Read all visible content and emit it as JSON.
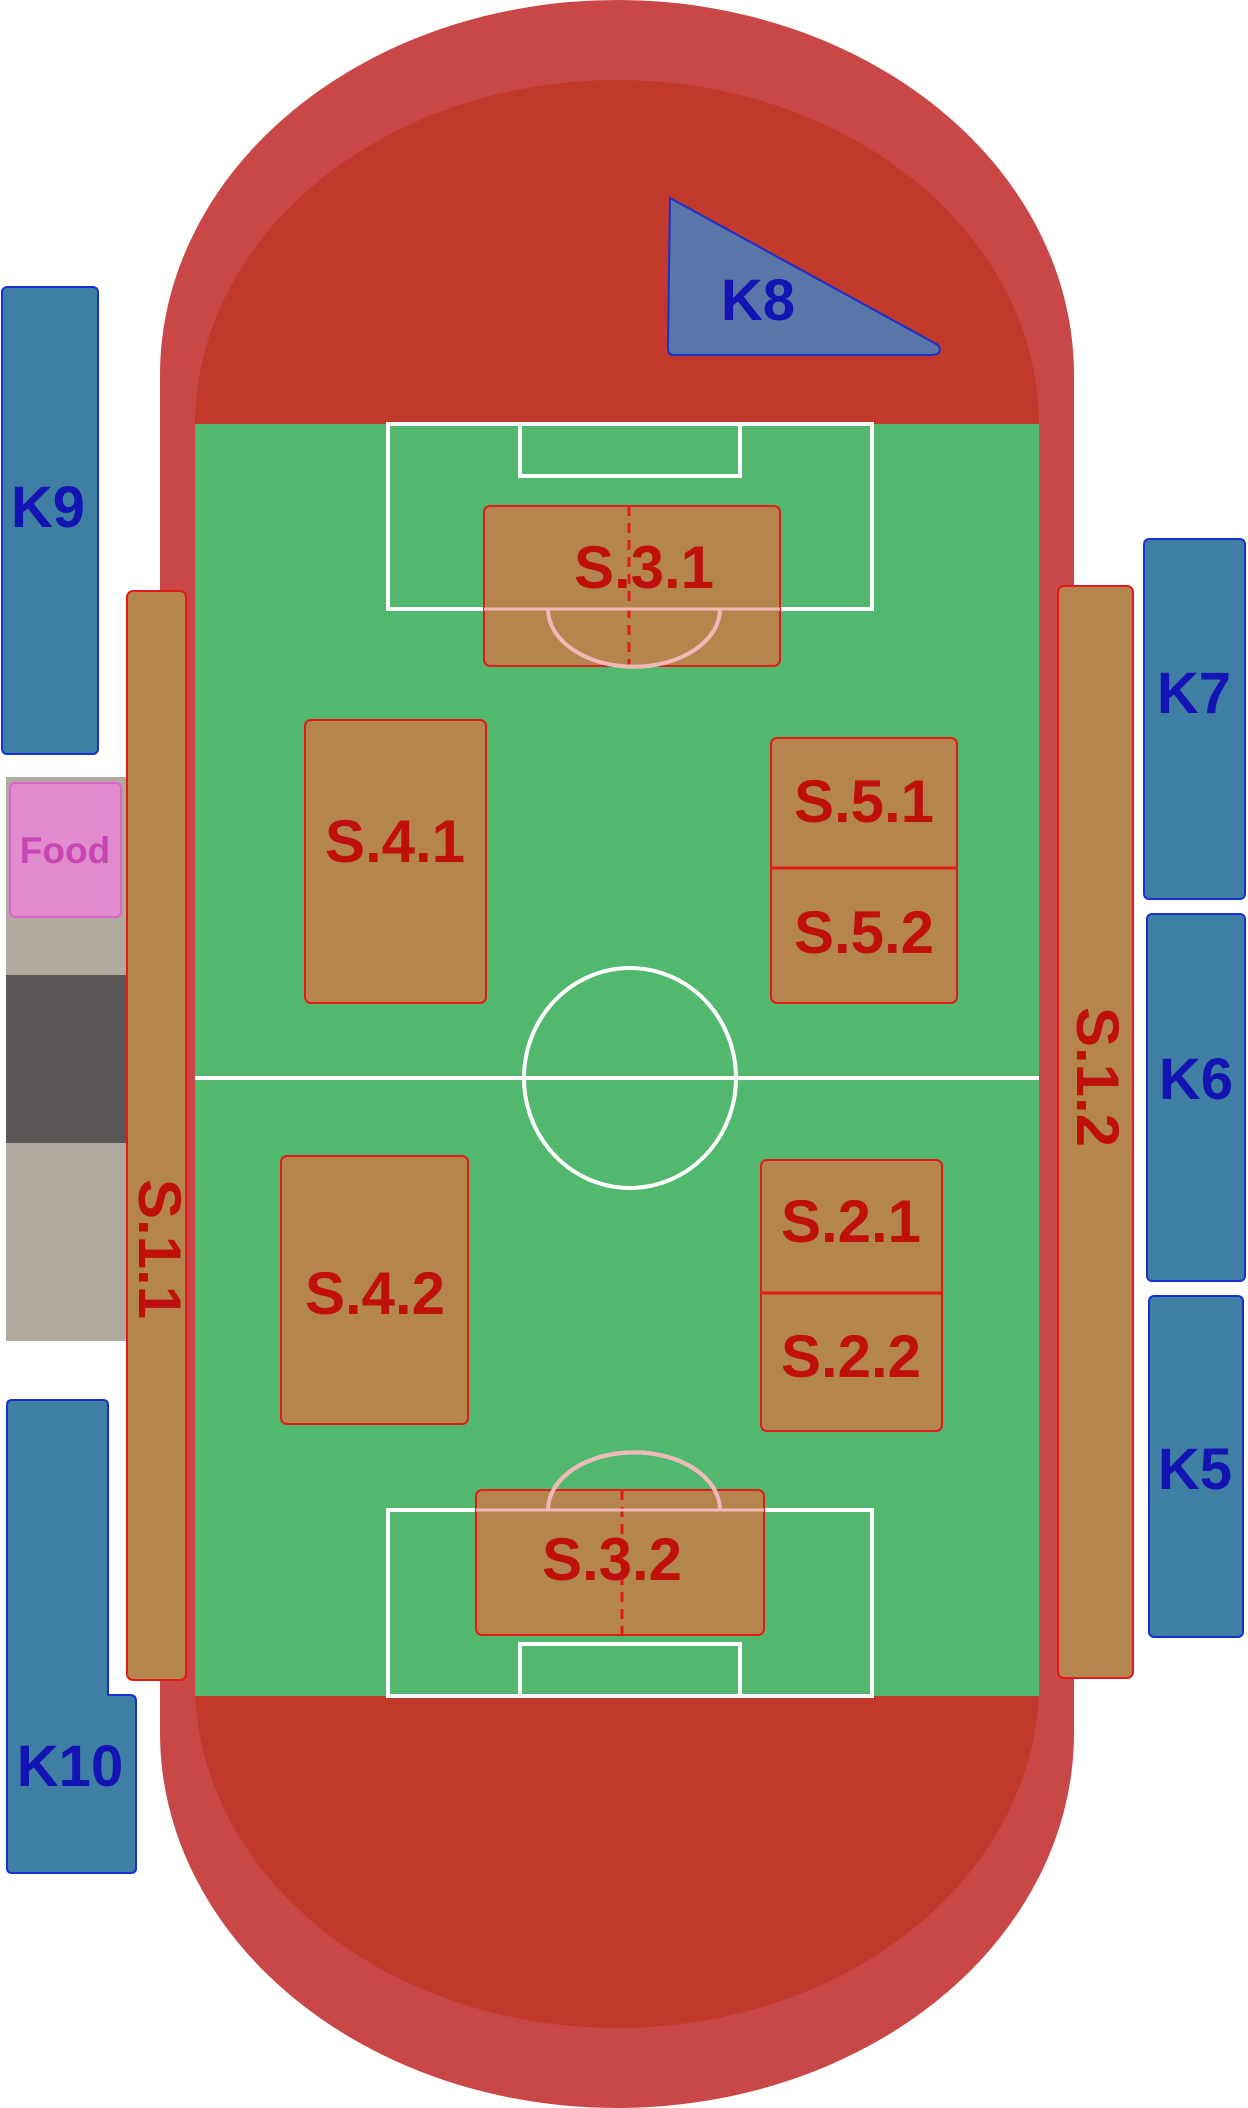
{
  "map": {
    "colors": {
      "track_outer": "#c94747",
      "track_inner": "#c0392b",
      "pitch": "#52b86e",
      "pitch_lines": "#ffffff",
      "section_fill": "#b5854e",
      "section_border": "#e31a1a",
      "section_text": "#c0100c",
      "kiosk_fill": "#3f7fa4",
      "kiosk_border": "#1a2fd0",
      "kiosk_text": "#1414b4",
      "triangle_fill": "#5a76a8",
      "food_fill": "#e08ccc",
      "food_border": "#e060d0",
      "food_text": "#c846b4",
      "walkway_light": "#b1a99d",
      "walkway_dark": "#5a5756"
    },
    "kiosks": {
      "k5": "K5",
      "k6": "K6",
      "k7": "K7",
      "k8": "K8",
      "k9": "K9",
      "k10": "K10"
    },
    "food": "Food",
    "sections": {
      "s11": "S.1.1",
      "s12": "S.1.2",
      "s21": "S.2.1",
      "s22": "S.2.2",
      "s31": "S.3.1",
      "s32": "S.3.2",
      "s41": "S.4.1",
      "s42": "S.4.2",
      "s51": "S.5.1",
      "s52": "S.5.2"
    }
  }
}
